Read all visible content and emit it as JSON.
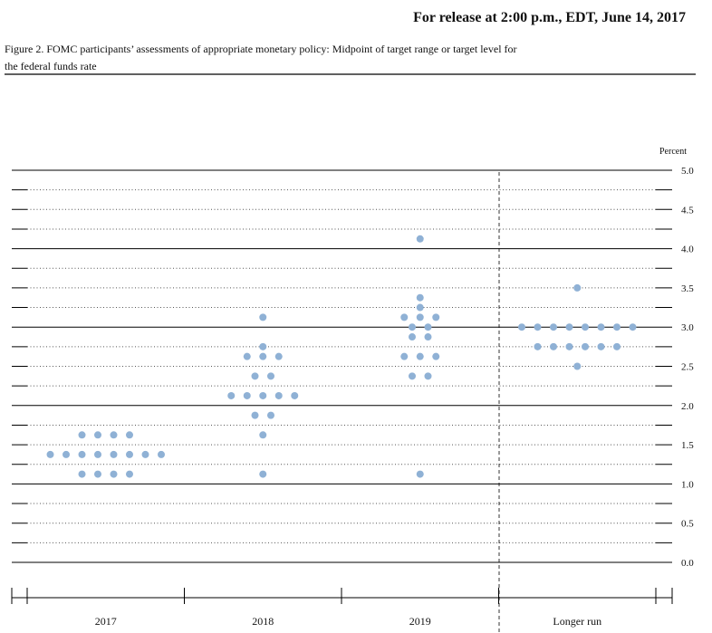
{
  "header": "For release at 2:00 p.m., EDT, June 14, 2017",
  "chart_data": {
    "type": "dot",
    "title": "Figure 2. FOMC participants’ assessments of appropriate monetary policy: Midpoint of target range or target level for",
    "title_line2": "the federal funds rate",
    "y_label": "Percent",
    "categories": [
      "2017",
      "2018",
      "2019",
      "Longer run"
    ],
    "values": [
      [
        1.625,
        1.625,
        1.625,
        1.625,
        1.375,
        1.375,
        1.375,
        1.375,
        1.375,
        1.375,
        1.375,
        1.375,
        1.125,
        1.125,
        1.125,
        1.125
      ],
      [
        3.125,
        2.75,
        2.625,
        2.625,
        2.625,
        2.375,
        2.375,
        2.125,
        2.125,
        2.125,
        2.125,
        2.125,
        1.875,
        1.875,
        1.625,
        1.125
      ],
      [
        4.125,
        3.375,
        3.25,
        3.125,
        3.125,
        3.125,
        3.0,
        3.0,
        2.875,
        2.875,
        2.625,
        2.625,
        2.625,
        2.375,
        2.375,
        1.125
      ],
      [
        3.5,
        3.0,
        3.0,
        3.0,
        3.0,
        3.0,
        3.0,
        3.0,
        3.0,
        2.75,
        2.75,
        2.75,
        2.75,
        2.75,
        2.75,
        2.5
      ]
    ],
    "color": "#8fb1d5",
    "ylim": [
      0,
      5
    ],
    "yticks": [
      {
        "value": 0,
        "label": "0.0"
      },
      0.5,
      {
        "value": 1,
        "label": "1.0"
      },
      1.5,
      {
        "value": 2,
        "label": "2.0"
      },
      2.5,
      {
        "value": 3,
        "label": "3.0"
      },
      3.5,
      {
        "value": 4,
        "label": "4.0"
      },
      4.5,
      {
        "value": 5,
        "label": "5.0"
      }
    ],
    "minor_yticks": [
      0.25,
      0.75,
      1.25,
      1.75,
      2.25,
      2.75,
      3.25,
      3.75,
      4.25,
      4.75
    ],
    "grid": true
  }
}
